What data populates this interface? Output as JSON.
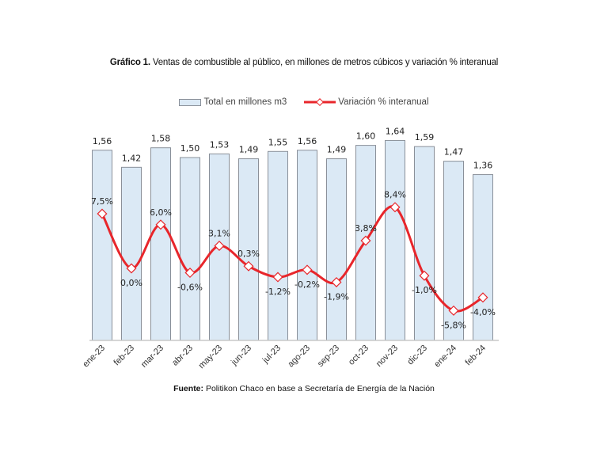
{
  "chart_data": {
    "type": "bar+line",
    "title_bold": "Gráfico 1.",
    "title": "Ventas de combustible al público, en millones de metros cúbicos y variación % interanual",
    "categories": [
      "ene-23",
      "feb-23",
      "mar-23",
      "abr-23",
      "may-23",
      "jun-23",
      "jul-23",
      "ago-23",
      "sep-23",
      "oct-23",
      "nov-23",
      "dic-23",
      "ene-24",
      "feb-24"
    ],
    "series": [
      {
        "name": "Total en millones m3",
        "type": "bar",
        "color": "#dbe9f5",
        "values": [
          1.56,
          1.42,
          1.58,
          1.5,
          1.53,
          1.49,
          1.55,
          1.56,
          1.49,
          1.6,
          1.64,
          1.59,
          1.47,
          1.36
        ],
        "labels": [
          "1,56",
          "1,42",
          "1,58",
          "1,50",
          "1,53",
          "1,49",
          "1,55",
          "1,56",
          "1,49",
          "1,60",
          "1,64",
          "1,59",
          "1,47",
          "1,36"
        ]
      },
      {
        "name": "Variación % interanual",
        "type": "line",
        "color": "#e8262b",
        "values": [
          7.5,
          0.0,
          6.0,
          -0.6,
          3.1,
          0.3,
          -1.2,
          -0.2,
          -1.9,
          3.8,
          8.4,
          -1.0,
          -5.8,
          -4.0
        ],
        "labels": [
          "7,5%",
          "0,0%",
          "6,0%",
          "-0,6%",
          "3,1%",
          "0,3%",
          "-1,2%",
          "-0,2%",
          "-1,9%",
          "3,8%",
          "8,4%",
          "-1,0%",
          "-5,8%",
          "-4,0%"
        ]
      }
    ],
    "legend_position": "top-center",
    "grid": false,
    "source_bold": "Fuente:",
    "source": "Politikon Chaco en base a Secretaría de Energía de la Nación"
  }
}
